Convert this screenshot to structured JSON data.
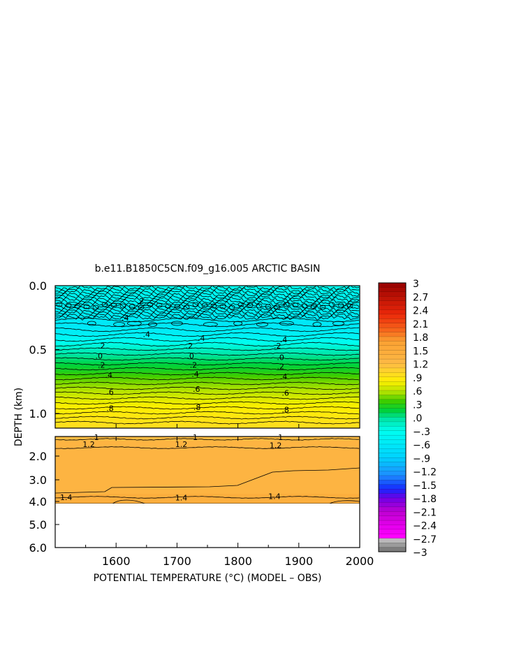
{
  "chart_data": {
    "type": "heatmap",
    "title": "b.e11.B1850C5CN.f09_g16.005 ARCTIC BASIN",
    "xlabel": "POTENTIAL TEMPERATURE (°C) (MODEL – OBS)",
    "ylabel": "DEPTH (km)",
    "xlim": [
      1500,
      2000
    ],
    "x_ticks": [
      "1600",
      "1700",
      "1800",
      "1900",
      "2000"
    ],
    "upper_panel": {
      "ylim": [
        0.0,
        1.1
      ],
      "y_ticks": [
        "0.0",
        "0.5",
        "1.0"
      ]
    },
    "lower_panel": {
      "ylim": [
        1.2,
        6.0
      ],
      "y_ticks": [
        "2.0",
        "3.0",
        "4.0",
        "5.0",
        "6.0"
      ],
      "data_bottom_depth": 4.0
    },
    "contour_labels_upper": [
      {
        "text": ".2",
        "x": 1640,
        "depth": 0.12
      },
      {
        "text": ".4",
        "x": 1615,
        "depth": 0.25
      },
      {
        "text": ".4",
        "x": 1650,
        "depth": 0.38
      },
      {
        "text": ".4",
        "x": 1740,
        "depth": 0.41
      },
      {
        "text": ".4",
        "x": 1875,
        "depth": 0.42
      },
      {
        "text": ".2",
        "x": 1576,
        "depth": 0.47
      },
      {
        "text": ".2",
        "x": 1720,
        "depth": 0.47
      },
      {
        "text": ".2",
        "x": 1865,
        "depth": 0.47
      },
      {
        "text": ".0",
        "x": 1572,
        "depth": 0.55
      },
      {
        "text": ".0",
        "x": 1722,
        "depth": 0.55
      },
      {
        "text": ".0",
        "x": 1870,
        "depth": 0.56
      },
      {
        "text": ".2",
        "x": 1576,
        "depth": 0.62
      },
      {
        "text": ".2",
        "x": 1727,
        "depth": 0.62
      },
      {
        "text": ".2",
        "x": 1870,
        "depth": 0.63
      },
      {
        "text": ".4",
        "x": 1588,
        "depth": 0.7
      },
      {
        "text": ".4",
        "x": 1730,
        "depth": 0.69
      },
      {
        "text": ".4",
        "x": 1875,
        "depth": 0.71
      },
      {
        "text": ".6",
        "x": 1590,
        "depth": 0.83
      },
      {
        "text": ".6",
        "x": 1732,
        "depth": 0.81
      },
      {
        "text": ".6",
        "x": 1878,
        "depth": 0.84
      },
      {
        "text": ".8",
        "x": 1590,
        "depth": 0.96
      },
      {
        "text": ".8",
        "x": 1733,
        "depth": 0.95
      },
      {
        "text": ".8",
        "x": 1878,
        "depth": 0.97
      }
    ],
    "contour_labels_lower": [
      {
        "text": "1.2",
        "x": 1555,
        "depth": 1.52
      },
      {
        "text": "1.2",
        "x": 1707,
        "depth": 1.52
      },
      {
        "text": "1.2",
        "x": 1862,
        "depth": 1.55
      },
      {
        "text": "1",
        "x": 1568,
        "depth": 1.23
      },
      {
        "text": "1",
        "x": 1730,
        "depth": 1.23
      },
      {
        "text": "1",
        "x": 1870,
        "depth": 1.23
      },
      {
        "text": "1.4",
        "x": 1518,
        "depth": 3.8
      },
      {
        "text": "1.4",
        "x": 1707,
        "depth": 3.82
      },
      {
        "text": "1.4",
        "x": 1860,
        "depth": 3.75
      }
    ],
    "colorbar": {
      "min": -3,
      "max": 3,
      "step": 0.1,
      "labels": [
        "3",
        "2.7",
        "2.4",
        "2.1",
        "1.8",
        "1.5",
        "1.2",
        ".9",
        ".6",
        ".3",
        ".0",
        "−.3",
        "−.6",
        "−.9",
        "−1.2",
        "−1.5",
        "−1.8",
        "−2.1",
        "−2.4",
        "−2.7",
        "−3"
      ],
      "label_values": [
        3,
        2.7,
        2.4,
        2.1,
        1.8,
        1.5,
        1.2,
        0.9,
        0.6,
        0.3,
        0,
        -0.3,
        -0.6,
        -0.9,
        -1.2,
        -1.5,
        -1.8,
        -2.1,
        -2.4,
        -2.7,
        -3
      ]
    }
  }
}
